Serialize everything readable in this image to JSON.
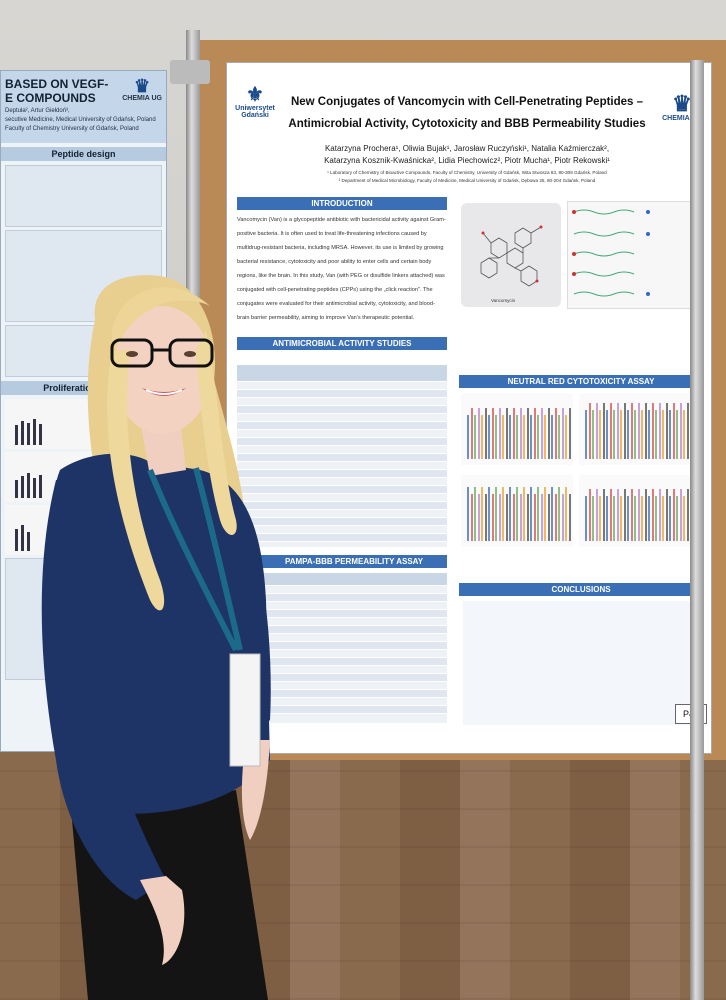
{
  "main_poster": {
    "title_line1": "New Conjugates of Vancomycin with Cell-Penetrating Peptides –",
    "title_line2": "Antimicrobial Activity, Cytotoxicity and BBB Permeability Studies",
    "authors_line1": "Katarzyna Prochera¹, Oliwia Bujak¹, Jarosław Ruczyński¹, Natalia Kaźmierczak²,",
    "authors_line2": "Katarzyna Kosznik-Kwaśnicka², Lidia Piechowicz², Piotr Mucha¹, Piotr Rekowski¹",
    "affiliation1": "¹ Laboratory of Chemistry of Bioactive Compounds, Faculty of Chemistry, University of Gdańsk, Wita Stwosza 63, 80-308 Gdańsk, Poland",
    "affiliation2": "² Department of Medical Microbiology, Faculty of Medicine, Medical University of Gdańsk, Dębowa 25, 80-204 Gdańsk, Poland",
    "logo_left_label": "Uniwersytet Gdański",
    "logo_right_label": "CHEMIA UG",
    "sections": {
      "introduction": "INTRODUCTION",
      "antimicrobial": "ANTIMICROBIAL ACTIVITY STUDIES",
      "pampa": "PAMPA-BBB PERMEABILITY ASSAY",
      "neutral_red": "NEUTRAL RED CYTOTOXICITY ASSAY",
      "conclusions": "CONCLUSIONS"
    },
    "intro_text": "Vancomycin (Van) is a glycopeptide antibiotic with bactericidal activity against Gram-positive bacteria. It is often used to treat life-threatening infections caused by multidrug-resistant bacteria, including MRSA. However, its use is limited by growing bacterial resistance, cytotoxicity and poor ability to enter cells and certain body regions, like the brain. In this study, Van (with PEG or disulfide linkers attached) was conjugated with cell-penetrating peptides (CPPs) using the „click reaction\". The conjugates were evaluated for their antimicrobial activity, cytotoxicity, and blood-brain barrier permeability, aiming to improve Van's therapeutic potential.",
    "molecule_label": "Vancomycin",
    "poster_number": "P40"
  },
  "left_poster": {
    "title_line1": "BASED ON VEGF-",
    "title_line2": "E COMPOUNDS",
    "authors": "Deptuła², Artur Giełdoń³,",
    "affil1": "secutive Medicine, Medical University of Gdańsk, Poland",
    "affil2": "Faculty of Chemistry University of Gdańsk, Poland",
    "section1": "Peptide design",
    "section2": "Proliferation assay",
    "logo_label": "CHEMIA UG"
  }
}
